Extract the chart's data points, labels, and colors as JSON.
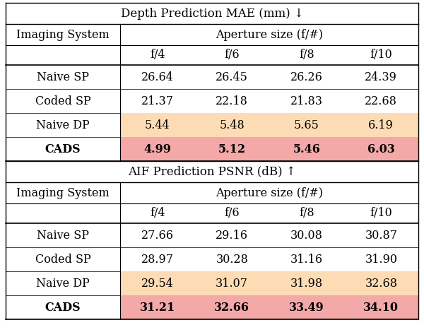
{
  "title1": "Depth Prediction MAE (mm) ↓",
  "title2": "AIF Prediction PSNR (dB) ↑",
  "aperture_header": "Aperture size (f/#)",
  "imaging_system": "Imaging System",
  "col_labels": [
    "f/4",
    "f/6",
    "f/8",
    "f/10"
  ],
  "table1_rows": [
    [
      "Naive SP",
      "26.64",
      "26.45",
      "26.26",
      "24.39"
    ],
    [
      "Coded SP",
      "21.37",
      "22.18",
      "21.83",
      "22.68"
    ],
    [
      "Naive DP",
      "5.44",
      "5.48",
      "5.65",
      "6.19"
    ],
    [
      "CADS",
      "4.99",
      "5.12",
      "5.46",
      "6.03"
    ]
  ],
  "table2_rows": [
    [
      "Naive SP",
      "27.66",
      "29.16",
      "30.08",
      "30.87"
    ],
    [
      "Coded SP",
      "28.97",
      "30.28",
      "31.16",
      "31.90"
    ],
    [
      "Naive DP",
      "29.54",
      "31.07",
      "31.98",
      "32.68"
    ],
    [
      "CADS",
      "31.21",
      "32.66",
      "33.49",
      "34.10"
    ]
  ],
  "highlight_naiveDP": "#FDDCB5",
  "highlight_CADS": "#F4A9A8",
  "bg_color": "#FFFFFF",
  "font_size": 11.5,
  "title_font_size": 12
}
